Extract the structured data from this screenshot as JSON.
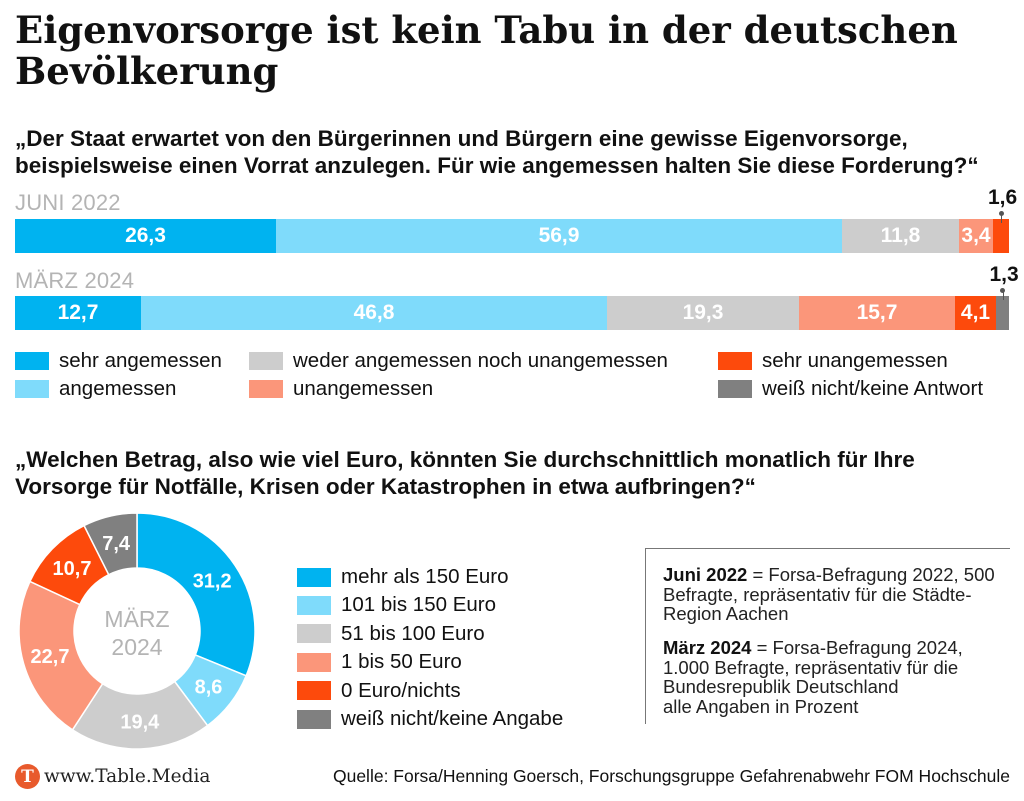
{
  "title": "Eigenvorsorge ist kein Tabu in der deutschen Bevölkerung",
  "question1": "„Der Staat erwartet von den Bürgerinnen und Bürgern eine gewisse Eigenvorsorge, beispielsweise einen Vorrat anzulegen. Für wie angemessen halten Sie diese Forderung?“",
  "question2": "„Welchen Betrag, also wie viel Euro, könnten Sie durchschnittlich monatlich für Ihre Vorsorge für Notfälle, Krisen oder Katastrophen in etwa aufbringen?“",
  "chart_data": [
    {
      "type": "bar",
      "orientation": "horizontal-stacked",
      "unit": "Prozent",
      "categories": [
        "JUNI 2022",
        "MÄRZ 2024"
      ],
      "series": [
        {
          "name": "sehr angemessen",
          "color": "#00b3f0",
          "values": [
            26.3,
            12.7
          ],
          "labels": [
            "26,3",
            "12,7"
          ]
        },
        {
          "name": "angemessen",
          "color": "#7fdbfb",
          "values": [
            56.9,
            46.8
          ],
          "labels": [
            "56,9",
            "46,8"
          ]
        },
        {
          "name": "weder angemessen noch unangemessen",
          "color": "#cdcdcd",
          "values": [
            11.8,
            19.3
          ],
          "labels": [
            "11,8",
            "19,3"
          ]
        },
        {
          "name": "unangemessen",
          "color": "#fb967a",
          "values": [
            3.4,
            15.7
          ],
          "labels": [
            "3,4",
            "15,7"
          ]
        },
        {
          "name": "sehr unangemessen",
          "color": "#fd4a0c",
          "values": [
            1.6,
            4.1
          ],
          "labels": [
            "1,6",
            "4,1"
          ]
        },
        {
          "name": "weiß nicht/keine Antwort",
          "color": "#808080",
          "values": [
            0,
            1.3
          ],
          "labels": [
            "",
            "1,3"
          ]
        }
      ],
      "legend_position": "bottom"
    },
    {
      "type": "pie",
      "variant": "donut",
      "center_label": [
        "MÄRZ",
        "2024"
      ],
      "unit": "Prozent",
      "slices": [
        {
          "name": "mehr als 150 Euro",
          "color": "#00b3f0",
          "value": 31.2,
          "label": "31,2"
        },
        {
          "name": "101 bis 150 Euro",
          "color": "#7fdbfb",
          "value": 8.6,
          "label": "8,6"
        },
        {
          "name": "51 bis 100 Euro",
          "color": "#cdcdcd",
          "value": 19.4,
          "label": "19,4"
        },
        {
          "name": "1 bis 50 Euro",
          "color": "#fb967a",
          "value": 22.7,
          "label": "22,7"
        },
        {
          "name": "0 Euro/nichts",
          "color": "#fd4a0c",
          "value": 10.7,
          "label": "10,7"
        },
        {
          "name": "weiß nicht/keine Angabe",
          "color": "#808080",
          "value": 7.4,
          "label": "7,4"
        }
      ],
      "legend_position": "right"
    }
  ],
  "notes": [
    {
      "key": "Juni 2022",
      "text": " = Forsa-Befragung 2022, 500 Befragte, repräsentativ für die Städte-Region Aachen"
    },
    {
      "key": "März 2024",
      "text": " = Forsa-Befragung 2024, 1.000 Befragte, repräsentativ für die Bundesrepublik Deutschland"
    },
    {
      "key": "",
      "text": "alle Angaben in Prozent"
    }
  ],
  "footer": {
    "logo_badge": "T",
    "logo_text": "www.Table.Media",
    "source": "Quelle: Forsa/Henning Goersch, Forschungsgruppe Gefahrenabwehr FOM Hochschule"
  }
}
